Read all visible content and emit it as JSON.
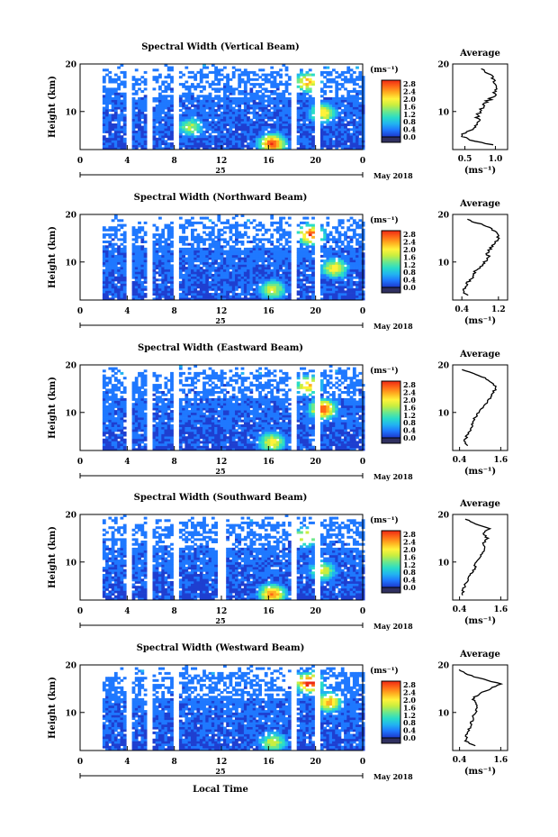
{
  "figure": {
    "x_axis_label": "Local Time",
    "date_label": "May 2018",
    "day_label": "25",
    "x_ticks": [
      "0",
      "4",
      "8",
      "12",
      "16",
      "20",
      "0"
    ],
    "height_axis_label": "Height (km)",
    "height_ticks": [
      "20",
      "10"
    ],
    "colorbar_unit": "(ms⁻¹)",
    "colorbar_ticks": [
      "2.8",
      "2.4",
      "2.0",
      "1.6",
      "1.2",
      "0.8",
      "0.4",
      "0.0"
    ],
    "colors": {
      "colormap": [
        "#2a2a8c",
        "#1e3fd0",
        "#1f78ff",
        "#22b4f0",
        "#2adcc8",
        "#6ee88a",
        "#c8ee40",
        "#fff23a",
        "#ffb020",
        "#ff6a18",
        "#ee2a14"
      ],
      "low_cap": "#303060"
    }
  },
  "chart_data": [
    {
      "type": "heatmap",
      "title": "Spectral Width (Vertical Beam)",
      "xlabel": "Local Time",
      "ylabel": "Height (km)",
      "xlim": [
        0,
        24
      ],
      "ylim": [
        2,
        20
      ],
      "zlim": [
        0.0,
        3.0
      ],
      "zunit": "ms⁻¹",
      "data_gaps_hours": [
        1.3,
        3.9,
        5.8,
        7.9,
        17.9,
        19.9
      ],
      "hotspots": [
        {
          "t": 16.2,
          "h": 3.0,
          "v": 2.6
        },
        {
          "t": 19.2,
          "h": 16.0,
          "v": 2.2
        },
        {
          "t": 20.5,
          "h": 9.5,
          "v": 2.0
        },
        {
          "t": 9.3,
          "h": 6.5,
          "v": 1.6
        }
      ],
      "average_profile": {
        "title": "Average",
        "xlabel": "(ms⁻¹)",
        "xticks": [
          "0.5",
          "1.0"
        ],
        "xlim": [
          0.3,
          1.2
        ],
        "height_km": [
          3,
          4,
          5,
          6,
          7,
          8,
          9,
          10,
          11,
          12,
          13,
          14,
          15,
          16,
          17,
          18,
          19
        ],
        "value": [
          0.95,
          0.55,
          0.45,
          0.6,
          0.7,
          0.72,
          0.7,
          0.75,
          0.8,
          0.85,
          0.95,
          1.0,
          1.05,
          1.0,
          0.95,
          0.9,
          0.75
        ]
      }
    },
    {
      "type": "heatmap",
      "title": "Spectral Width (Northward Beam)",
      "xlabel": "Local Time",
      "ylabel": "Height (km)",
      "xlim": [
        0,
        24
      ],
      "ylim": [
        2,
        20
      ],
      "zlim": [
        0.0,
        3.0
      ],
      "zunit": "ms⁻¹",
      "data_gaps_hours": [
        1.3,
        3.9,
        5.8,
        7.9,
        17.9,
        19.9
      ],
      "hotspots": [
        {
          "t": 19.5,
          "h": 15.5,
          "v": 2.6
        },
        {
          "t": 21.5,
          "h": 8.5,
          "v": 2.0
        },
        {
          "t": 16.2,
          "h": 4.0,
          "v": 1.8
        }
      ],
      "average_profile": {
        "title": "Average",
        "xlabel": "(ms⁻¹)",
        "xticks": [
          "0.4",
          "1.2"
        ],
        "xlim": [
          0.2,
          1.4
        ],
        "height_km": [
          3,
          4,
          5,
          6,
          7,
          8,
          9,
          10,
          11,
          12,
          13,
          14,
          15,
          16,
          17,
          18,
          19
        ],
        "value": [
          0.5,
          0.45,
          0.5,
          0.55,
          0.65,
          0.7,
          0.8,
          0.9,
          1.0,
          0.95,
          1.05,
          1.1,
          1.2,
          1.15,
          1.05,
          0.8,
          0.5
        ]
      }
    },
    {
      "type": "heatmap",
      "title": "Spectral Width (Eastward Beam)",
      "xlabel": "Local Time",
      "ylabel": "Height (km)",
      "xlim": [
        0,
        24
      ],
      "ylim": [
        2,
        20
      ],
      "zlim": [
        0.0,
        3.0
      ],
      "zunit": "ms⁻¹",
      "data_gaps_hours": [
        1.3,
        3.9,
        5.8,
        7.9,
        17.9,
        19.9
      ],
      "hotspots": [
        {
          "t": 20.5,
          "h": 10.5,
          "v": 2.6
        },
        {
          "t": 19.3,
          "h": 15.5,
          "v": 2.2
        },
        {
          "t": 16.2,
          "h": 3.5,
          "v": 2.0
        }
      ],
      "average_profile": {
        "title": "Average",
        "xlabel": "(ms⁻¹)",
        "xticks": [
          "0.4",
          "1.6"
        ],
        "xlim": [
          0.2,
          1.8
        ],
        "height_km": [
          3,
          4,
          5,
          6,
          7,
          8,
          9,
          10,
          11,
          12,
          13,
          14,
          15,
          16,
          17,
          18,
          19
        ],
        "value": [
          0.6,
          0.55,
          0.6,
          0.7,
          0.75,
          0.8,
          0.85,
          0.95,
          1.05,
          1.2,
          1.3,
          1.35,
          1.45,
          1.4,
          1.2,
          0.9,
          0.5
        ]
      }
    },
    {
      "type": "heatmap",
      "title": "Spectral Width (Southward Beam)",
      "xlabel": "Local Time",
      "ylabel": "Height (km)",
      "xlim": [
        0,
        24
      ],
      "ylim": [
        2,
        20
      ],
      "zlim": [
        0.0,
        3.0
      ],
      "zunit": "ms⁻¹",
      "data_gaps_hours": [
        1.3,
        3.9,
        5.8,
        7.9,
        11.8,
        17.9,
        19.9
      ],
      "hotspots": [
        {
          "t": 16.2,
          "h": 3.0,
          "v": 2.4
        },
        {
          "t": 19.0,
          "h": 15.0,
          "v": 2.0
        },
        {
          "t": 20.5,
          "h": 8.0,
          "v": 1.8
        }
      ],
      "average_profile": {
        "title": "Average",
        "xlabel": "(ms⁻¹)",
        "xticks": [
          "0.4",
          "1.6"
        ],
        "xlim": [
          0.2,
          1.8
        ],
        "height_km": [
          3,
          4,
          5,
          6,
          7,
          8,
          9,
          10,
          11,
          12,
          13,
          14,
          15,
          16,
          17,
          18,
          19
        ],
        "value": [
          0.5,
          0.5,
          0.55,
          0.65,
          0.7,
          0.8,
          0.85,
          0.9,
          1.0,
          1.05,
          1.15,
          1.1,
          1.2,
          1.1,
          1.25,
          0.9,
          0.55
        ]
      }
    },
    {
      "type": "heatmap",
      "title": "Spectral Width (Westward Beam)",
      "xlabel": "Local Time",
      "ylabel": "Height (km)",
      "xlim": [
        0,
        24
      ],
      "ylim": [
        2,
        20
      ],
      "zlim": [
        0.0,
        3.0
      ],
      "zunit": "ms⁻¹",
      "data_gaps_hours": [
        1.3,
        3.9,
        5.8,
        7.9,
        17.9,
        19.9
      ],
      "hotspots": [
        {
          "t": 19.3,
          "h": 16.0,
          "v": 2.8
        },
        {
          "t": 21.0,
          "h": 12.0,
          "v": 2.2
        },
        {
          "t": 16.3,
          "h": 3.5,
          "v": 1.8
        }
      ],
      "average_profile": {
        "title": "Average",
        "xlabel": "(ms⁻¹)",
        "xticks": [
          "0.4",
          "1.6"
        ],
        "xlim": [
          0.2,
          1.8
        ],
        "height_km": [
          3,
          4,
          5,
          6,
          7,
          8,
          9,
          10,
          11,
          12,
          13,
          14,
          15,
          16,
          17,
          18,
          19
        ],
        "value": [
          0.85,
          0.55,
          0.6,
          0.65,
          0.7,
          0.75,
          0.8,
          0.85,
          0.9,
          0.85,
          0.8,
          1.0,
          1.3,
          1.6,
          1.1,
          0.6,
          0.4
        ]
      }
    }
  ]
}
